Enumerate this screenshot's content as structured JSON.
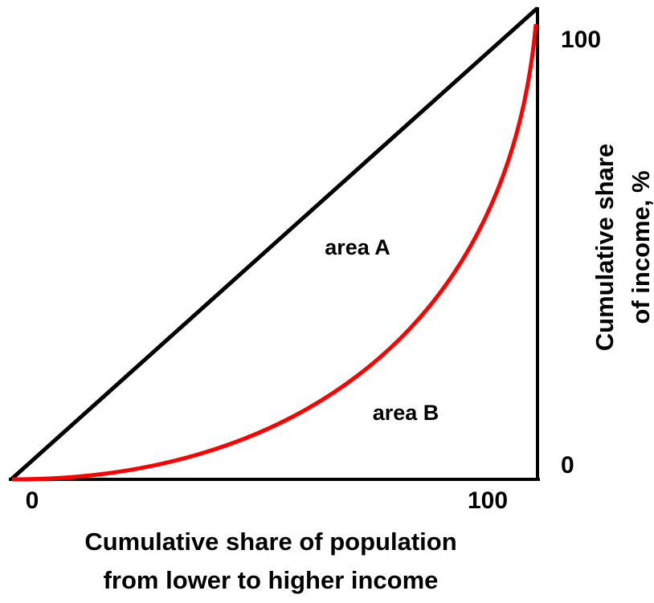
{
  "x_axis": {
    "title": [
      "Cumulative share of population",
      "from lower to higher income"
    ],
    "ticks": [
      "0",
      "100"
    ]
  },
  "y_axis": {
    "title": [
      "Cumulative share",
      "of income, %"
    ],
    "ticks": [
      "0",
      "100"
    ]
  },
  "areas": [
    "area A",
    "area B"
  ]
}
